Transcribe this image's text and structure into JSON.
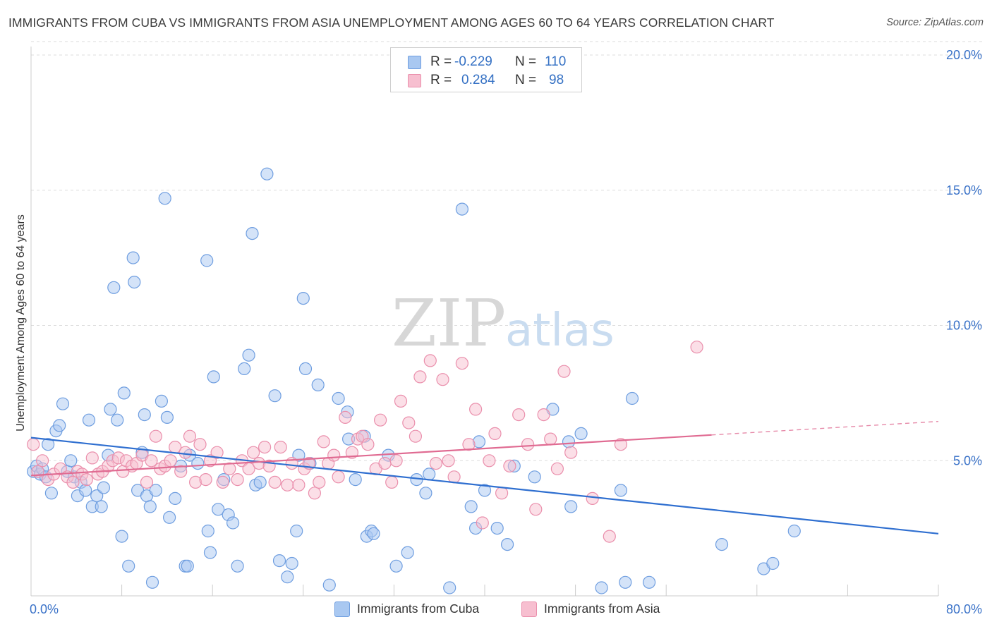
{
  "title": "IMMIGRANTS FROM CUBA VS IMMIGRANTS FROM ASIA UNEMPLOYMENT AMONG AGES 60 TO 64 YEARS CORRELATION CHART",
  "source": "Source: ZipAtlas.com",
  "watermark": {
    "zip": "ZIP",
    "atlas": "atlas"
  },
  "legend": {
    "rows": [
      {
        "r_label": "R =",
        "r_value": "-0.229",
        "n_label": "N =",
        "n_value": "110"
      },
      {
        "r_label": "R =",
        "r_value": "0.284",
        "n_label": "N =",
        "n_value": "98"
      }
    ]
  },
  "colors": {
    "cuba_fill": "#a9c8f1",
    "cuba_stroke": "#6f9ee0",
    "cuba_line": "#2f6fd0",
    "asia_fill": "#f7bfd0",
    "asia_stroke": "#ea8fac",
    "asia_line": "#e06b92",
    "tick_label": "#3a72c8",
    "grid": "#dddddd"
  },
  "chart_data": {
    "type": "scatter",
    "title": "IMMIGRANTS FROM CUBA VS IMMIGRANTS FROM ASIA UNEMPLOYMENT AMONG AGES 60 TO 64 YEARS CORRELATION CHART",
    "xlabel": "",
    "ylabel": "Unemployment Among Ages 60 to 64 years",
    "xlim": [
      0,
      80
    ],
    "ylim": [
      0,
      20.5
    ],
    "x_tick_labels": [
      "0.0%",
      "80.0%"
    ],
    "y_ticks": [
      5,
      10,
      15,
      20
    ],
    "y_tick_labels": [
      "5.0%",
      "10.0%",
      "15.0%",
      "20.0%"
    ],
    "grid": true,
    "legend_position": "top-center",
    "series": [
      {
        "name": "Immigrants from Cuba",
        "r": -0.229,
        "n": 110,
        "trend": {
          "x": [
            0,
            80
          ],
          "y": [
            5.85,
            2.3
          ]
        },
        "points": [
          [
            0.2,
            4.6
          ],
          [
            0.5,
            4.8
          ],
          [
            0.8,
            4.5
          ],
          [
            1.0,
            4.7
          ],
          [
            1.3,
            4.4
          ],
          [
            1.5,
            5.6
          ],
          [
            1.8,
            3.8
          ],
          [
            2.2,
            6.1
          ],
          [
            2.5,
            6.3
          ],
          [
            2.8,
            7.1
          ],
          [
            3.2,
            4.6
          ],
          [
            3.5,
            5.0
          ],
          [
            3.8,
            4.4
          ],
          [
            4.1,
            3.7
          ],
          [
            4.4,
            4.2
          ],
          [
            4.8,
            3.9
          ],
          [
            5.1,
            6.5
          ],
          [
            5.4,
            3.3
          ],
          [
            5.8,
            3.7
          ],
          [
            6.2,
            3.3
          ],
          [
            6.4,
            4.0
          ],
          [
            6.8,
            5.2
          ],
          [
            7.0,
            6.9
          ],
          [
            7.3,
            11.4
          ],
          [
            7.6,
            6.5
          ],
          [
            8.0,
            2.2
          ],
          [
            8.2,
            7.5
          ],
          [
            8.6,
            1.1
          ],
          [
            9.0,
            12.5
          ],
          [
            9.1,
            11.6
          ],
          [
            9.4,
            3.9
          ],
          [
            9.8,
            5.3
          ],
          [
            10.0,
            6.7
          ],
          [
            10.2,
            3.7
          ],
          [
            10.5,
            3.3
          ],
          [
            10.7,
            0.5
          ],
          [
            11.0,
            3.9
          ],
          [
            11.5,
            7.2
          ],
          [
            11.8,
            14.7
          ],
          [
            12.0,
            6.6
          ],
          [
            12.2,
            2.9
          ],
          [
            12.7,
            3.6
          ],
          [
            13.2,
            4.8
          ],
          [
            13.6,
            1.1
          ],
          [
            13.8,
            1.1
          ],
          [
            14.0,
            5.2
          ],
          [
            14.7,
            4.9
          ],
          [
            15.5,
            12.4
          ],
          [
            15.6,
            2.4
          ],
          [
            15.8,
            1.6
          ],
          [
            16.1,
            8.1
          ],
          [
            16.5,
            3.2
          ],
          [
            17.0,
            4.3
          ],
          [
            17.4,
            3.0
          ],
          [
            17.8,
            2.7
          ],
          [
            18.2,
            1.1
          ],
          [
            18.8,
            8.4
          ],
          [
            19.2,
            8.9
          ],
          [
            19.5,
            13.4
          ],
          [
            19.8,
            4.1
          ],
          [
            20.2,
            4.2
          ],
          [
            20.8,
            15.6
          ],
          [
            21.5,
            7.4
          ],
          [
            21.9,
            1.3
          ],
          [
            22.6,
            0.7
          ],
          [
            23.0,
            1.2
          ],
          [
            23.4,
            2.4
          ],
          [
            23.6,
            5.2
          ],
          [
            24.0,
            11.0
          ],
          [
            24.2,
            8.4
          ],
          [
            24.6,
            4.9
          ],
          [
            25.3,
            7.8
          ],
          [
            26.3,
            0.4
          ],
          [
            27.1,
            7.3
          ],
          [
            27.9,
            6.8
          ],
          [
            28.0,
            5.8
          ],
          [
            28.6,
            4.3
          ],
          [
            29.4,
            5.9
          ],
          [
            29.6,
            2.2
          ],
          [
            30.0,
            2.4
          ],
          [
            30.2,
            2.3
          ],
          [
            31.5,
            5.2
          ],
          [
            32.2,
            1.1
          ],
          [
            33.2,
            1.6
          ],
          [
            34.0,
            4.3
          ],
          [
            34.8,
            3.8
          ],
          [
            35.1,
            4.5
          ],
          [
            36.9,
            0.3
          ],
          [
            38.0,
            14.3
          ],
          [
            38.8,
            3.3
          ],
          [
            39.2,
            2.5
          ],
          [
            39.5,
            5.7
          ],
          [
            40.0,
            3.9
          ],
          [
            41.1,
            2.5
          ],
          [
            42.0,
            1.9
          ],
          [
            42.6,
            4.8
          ],
          [
            44.4,
            4.4
          ],
          [
            46.0,
            6.9
          ],
          [
            47.4,
            5.7
          ],
          [
            47.6,
            3.3
          ],
          [
            48.5,
            6.0
          ],
          [
            50.3,
            0.3
          ],
          [
            52.0,
            3.9
          ],
          [
            52.4,
            0.5
          ],
          [
            53.0,
            7.3
          ],
          [
            54.5,
            0.5
          ],
          [
            60.9,
            1.9
          ],
          [
            64.6,
            1.0
          ],
          [
            65.4,
            1.2
          ],
          [
            67.3,
            2.4
          ]
        ]
      },
      {
        "name": "Immigrants from Asia",
        "r": 0.284,
        "n": 98,
        "trend": {
          "x": [
            0,
            60
          ],
          "y": [
            4.45,
            5.95
          ]
        },
        "trend_dashed": {
          "x": [
            60,
            80
          ],
          "y": [
            5.95,
            6.45
          ]
        },
        "points": [
          [
            0.2,
            5.6
          ],
          [
            0.6,
            4.6
          ],
          [
            1.0,
            5.0
          ],
          [
            1.5,
            4.3
          ],
          [
            2.0,
            4.5
          ],
          [
            2.6,
            4.7
          ],
          [
            3.2,
            4.4
          ],
          [
            3.7,
            4.2
          ],
          [
            4.1,
            4.6
          ],
          [
            4.5,
            4.5
          ],
          [
            4.9,
            4.3
          ],
          [
            5.4,
            5.1
          ],
          [
            5.9,
            4.5
          ],
          [
            6.3,
            4.6
          ],
          [
            6.8,
            4.8
          ],
          [
            7.2,
            5.0
          ],
          [
            7.7,
            5.1
          ],
          [
            8.1,
            4.6
          ],
          [
            8.4,
            5.0
          ],
          [
            8.9,
            4.8
          ],
          [
            9.3,
            4.9
          ],
          [
            9.8,
            5.2
          ],
          [
            10.2,
            4.2
          ],
          [
            10.6,
            5.0
          ],
          [
            11.0,
            5.9
          ],
          [
            11.4,
            4.7
          ],
          [
            11.8,
            4.8
          ],
          [
            12.3,
            5.0
          ],
          [
            12.7,
            5.5
          ],
          [
            13.2,
            4.6
          ],
          [
            13.6,
            5.3
          ],
          [
            14.0,
            5.9
          ],
          [
            14.5,
            4.2
          ],
          [
            14.9,
            5.6
          ],
          [
            15.4,
            4.3
          ],
          [
            15.8,
            5.0
          ],
          [
            16.4,
            5.3
          ],
          [
            16.9,
            4.2
          ],
          [
            17.5,
            4.7
          ],
          [
            18.2,
            4.3
          ],
          [
            18.6,
            5.0
          ],
          [
            19.2,
            4.7
          ],
          [
            19.6,
            5.3
          ],
          [
            20.1,
            4.9
          ],
          [
            20.6,
            5.5
          ],
          [
            21.0,
            4.8
          ],
          [
            21.5,
            4.2
          ],
          [
            22.0,
            5.5
          ],
          [
            22.6,
            4.1
          ],
          [
            23.0,
            4.9
          ],
          [
            23.6,
            4.1
          ],
          [
            24.1,
            4.7
          ],
          [
            24.5,
            4.9
          ],
          [
            25.0,
            3.8
          ],
          [
            25.4,
            4.2
          ],
          [
            25.8,
            5.7
          ],
          [
            26.2,
            4.9
          ],
          [
            26.7,
            5.2
          ],
          [
            27.1,
            4.4
          ],
          [
            27.7,
            6.6
          ],
          [
            28.3,
            5.3
          ],
          [
            28.8,
            5.8
          ],
          [
            29.2,
            5.9
          ],
          [
            29.7,
            5.6
          ],
          [
            30.4,
            4.7
          ],
          [
            30.8,
            6.5
          ],
          [
            31.2,
            4.9
          ],
          [
            31.8,
            4.2
          ],
          [
            32.2,
            5.0
          ],
          [
            32.6,
            7.2
          ],
          [
            33.3,
            6.4
          ],
          [
            33.9,
            5.9
          ],
          [
            34.3,
            8.1
          ],
          [
            35.2,
            8.7
          ],
          [
            35.7,
            4.9
          ],
          [
            36.3,
            8.0
          ],
          [
            36.8,
            5.0
          ],
          [
            37.3,
            4.4
          ],
          [
            38.0,
            8.6
          ],
          [
            38.6,
            5.6
          ],
          [
            39.2,
            6.9
          ],
          [
            39.8,
            2.7
          ],
          [
            40.4,
            5.0
          ],
          [
            40.9,
            6.0
          ],
          [
            41.5,
            3.8
          ],
          [
            42.2,
            4.8
          ],
          [
            43.0,
            6.7
          ],
          [
            43.8,
            5.6
          ],
          [
            44.5,
            3.2
          ],
          [
            45.2,
            6.7
          ],
          [
            45.8,
            5.8
          ],
          [
            46.4,
            4.7
          ],
          [
            47.0,
            8.3
          ],
          [
            47.6,
            5.3
          ],
          [
            49.5,
            3.6
          ],
          [
            51.0,
            2.2
          ],
          [
            52.0,
            5.6
          ],
          [
            58.7,
            9.2
          ]
        ]
      }
    ]
  },
  "bottom_legend": [
    {
      "label": "Immigrants from Cuba"
    },
    {
      "label": "Immigrants from Asia"
    }
  ]
}
